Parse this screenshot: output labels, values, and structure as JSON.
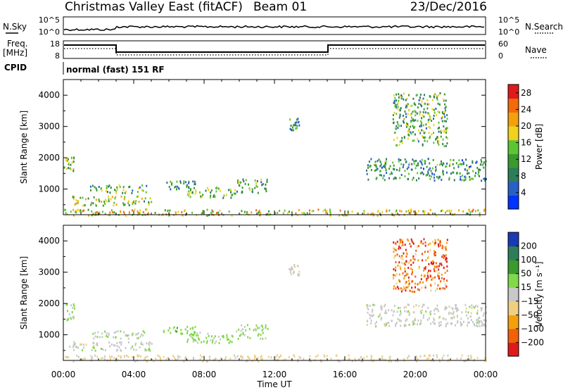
{
  "header": {
    "radar": "Christmas Valley East (fitACF)",
    "beam": "Beam 01",
    "date": "23/Dec/2016"
  },
  "status_panels": {
    "nsky_label": "N.Sky",
    "nsearch_label": "N.Search",
    "freq_label": "Freq.",
    "freq_unit": "[MHz]",
    "nave_label": "Nave",
    "cpid_label": "CPID",
    "cpid_text": "normal (fast) 151 RF",
    "noise_ticks": [
      "10^5",
      "10^0"
    ],
    "freq_ticks": [
      "18",
      "8"
    ],
    "nave_ticks": [
      "60",
      "0"
    ]
  },
  "chart_data": [
    {
      "type": "heatmap",
      "panel": "power",
      "ylabel": "Slant Range [km]",
      "ylim": [
        180,
        4500
      ],
      "yticks": [
        1000,
        2000,
        3000,
        4000
      ],
      "colorbar_label": "Power [dB]",
      "colorbar_ticks": [
        4,
        8,
        12,
        16,
        20,
        24,
        28
      ],
      "colorbar_range": [
        0,
        30
      ],
      "colors": [
        "#0033ff",
        "#2860c8",
        "#2e7d5a",
        "#3a9a2e",
        "#5cc632",
        "#f0d21c",
        "#f4a00c",
        "#f26a0a",
        "#e01a1a"
      ],
      "regions": [
        {
          "t": [
            0.0,
            0.6
          ],
          "r": [
            1500,
            2050
          ],
          "v": 14
        },
        {
          "t": [
            0.3,
            5.0
          ],
          "r": [
            500,
            800
          ],
          "v": 16
        },
        {
          "t": [
            1.5,
            4.8
          ],
          "r": [
            900,
            1150
          ],
          "v": 12
        },
        {
          "t": [
            5.6,
            7.5
          ],
          "r": [
            1000,
            1300
          ],
          "v": 10
        },
        {
          "t": [
            7.0,
            9.8
          ],
          "r": [
            750,
            1100
          ],
          "v": 14
        },
        {
          "t": [
            9.8,
            11.6
          ],
          "r": [
            900,
            1350
          ],
          "v": 11
        },
        {
          "t": [
            0.0,
            24.0
          ],
          "r": [
            180,
            380
          ],
          "v": 18
        },
        {
          "t": [
            17.2,
            24.0
          ],
          "r": [
            1300,
            2000
          ],
          "v": 10
        },
        {
          "t": [
            18.7,
            21.8
          ],
          "r": [
            2400,
            4100
          ],
          "v": 12
        },
        {
          "t": [
            12.8,
            13.4
          ],
          "r": [
            2900,
            3300
          ],
          "v": 8
        }
      ]
    },
    {
      "type": "heatmap",
      "panel": "velocity",
      "xlabel": "Time UT",
      "xticks": [
        "00:00",
        "04:00",
        "08:00",
        "12:00",
        "16:00",
        "20:00",
        "00:00"
      ],
      "xlim_hours": [
        0,
        24
      ],
      "ylabel": "Slant Range [km]",
      "ylim": [
        180,
        4500
      ],
      "yticks": [
        1000,
        2000,
        3000,
        4000
      ],
      "colorbar_label": "Velocity [m s⁻¹]",
      "colorbar_ticks": [
        200,
        100,
        50,
        15,
        -15,
        -50,
        -100,
        -200
      ],
      "colorbar_range": [
        -250,
        250
      ],
      "colors": [
        "#e01a1a",
        "#f2600a",
        "#f4a00c",
        "#f0d080",
        "#c8c8c8",
        "#80d84a",
        "#3a9a2e",
        "#2e7d5a",
        "#1a3ab4"
      ],
      "regions": [
        {
          "t": [
            0.0,
            0.6
          ],
          "r": [
            1500,
            2050
          ],
          "v": 30
        },
        {
          "t": [
            0.3,
            5.0
          ],
          "r": [
            500,
            800
          ],
          "v": 5
        },
        {
          "t": [
            1.5,
            4.8
          ],
          "r": [
            900,
            1150
          ],
          "v": 10
        },
        {
          "t": [
            5.6,
            7.5
          ],
          "r": [
            1000,
            1300
          ],
          "v": 60
        },
        {
          "t": [
            7.0,
            9.8
          ],
          "r": [
            750,
            1100
          ],
          "v": 50
        },
        {
          "t": [
            9.8,
            11.6
          ],
          "r": [
            900,
            1350
          ],
          "v": 40
        },
        {
          "t": [
            0.0,
            24.0
          ],
          "r": [
            180,
            380
          ],
          "v": -40
        },
        {
          "t": [
            17.2,
            24.0
          ],
          "r": [
            1300,
            2000
          ],
          "v": 0
        },
        {
          "t": [
            18.7,
            21.8
          ],
          "r": [
            2400,
            4100
          ],
          "v": -150
        },
        {
          "t": [
            12.8,
            13.4
          ],
          "r": [
            2900,
            3300
          ],
          "v": 0
        }
      ]
    }
  ]
}
